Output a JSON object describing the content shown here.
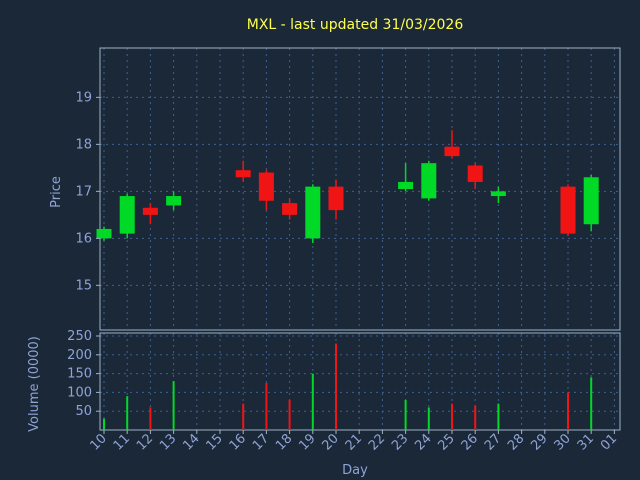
{
  "chart_data": {
    "type": "candlestick",
    "title": "MXL - last updated 31/03/2026",
    "xlabel": "Day",
    "ylabel_price": "Price",
    "ylabel_volume": "Volume (0000)",
    "colors": {
      "up": "#00d926",
      "down": "#f01414",
      "grid": "#3f5f93",
      "frame": "#9fb2c8",
      "text": "#8fa3d6",
      "title": "#ffff4d",
      "background": "#1b2838"
    },
    "x_labels": [
      "10",
      "11",
      "12",
      "13",
      "14",
      "15",
      "16",
      "17",
      "18",
      "19",
      "20",
      "21",
      "22",
      "23",
      "24",
      "25",
      "26",
      "27",
      "28",
      "29",
      "30",
      "31",
      "01"
    ],
    "price_ticks": [
      15,
      16,
      17,
      18,
      19
    ],
    "price_range": [
      14.05,
      20.05
    ],
    "volume_ticks": [
      50,
      100,
      150,
      200,
      250
    ],
    "volume_range": [
      0,
      258
    ],
    "grid": true,
    "candles": [
      {
        "day": "10",
        "i": 0,
        "open": 16.0,
        "high": 16.25,
        "low": 15.95,
        "close": 16.2,
        "volume": 30,
        "dir": "up"
      },
      {
        "day": "11",
        "i": 1,
        "open": 16.1,
        "high": 16.95,
        "low": 16.0,
        "close": 16.9,
        "volume": 90,
        "dir": "up"
      },
      {
        "day": "12",
        "i": 2,
        "open": 16.65,
        "high": 16.75,
        "low": 16.3,
        "close": 16.5,
        "volume": 60,
        "dir": "down"
      },
      {
        "day": "13",
        "i": 3,
        "open": 16.7,
        "high": 17.0,
        "low": 16.6,
        "close": 16.9,
        "volume": 130,
        "dir": "up"
      },
      {
        "day": "16",
        "i": 6,
        "open": 17.45,
        "high": 17.65,
        "low": 17.2,
        "close": 17.3,
        "volume": 70,
        "dir": "down"
      },
      {
        "day": "17",
        "i": 7,
        "open": 17.4,
        "high": 17.45,
        "low": 16.6,
        "close": 16.8,
        "volume": 125,
        "dir": "down"
      },
      {
        "day": "18",
        "i": 8,
        "open": 16.75,
        "high": 16.85,
        "low": 16.4,
        "close": 16.5,
        "volume": 80,
        "dir": "down"
      },
      {
        "day": "19",
        "i": 9,
        "open": 16.0,
        "high": 17.15,
        "low": 15.9,
        "close": 17.1,
        "volume": 150,
        "dir": "up"
      },
      {
        "day": "20",
        "i": 10,
        "open": 17.1,
        "high": 17.25,
        "low": 16.4,
        "close": 16.6,
        "volume": 230,
        "dir": "down"
      },
      {
        "day": "23",
        "i": 13,
        "open": 17.05,
        "high": 17.6,
        "low": 17.0,
        "close": 17.2,
        "volume": 80,
        "dir": "up"
      },
      {
        "day": "24",
        "i": 14,
        "open": 16.85,
        "high": 17.65,
        "low": 16.8,
        "close": 17.6,
        "volume": 60,
        "dir": "up"
      },
      {
        "day": "25",
        "i": 15,
        "open": 17.95,
        "high": 18.3,
        "low": 17.7,
        "close": 17.75,
        "volume": 70,
        "dir": "down"
      },
      {
        "day": "26",
        "i": 16,
        "open": 17.55,
        "high": 17.6,
        "low": 17.05,
        "close": 17.2,
        "volume": 65,
        "dir": "down"
      },
      {
        "day": "27",
        "i": 17,
        "open": 16.9,
        "high": 17.1,
        "low": 16.75,
        "close": 17.0,
        "volume": 70,
        "dir": "up"
      },
      {
        "day": "30",
        "i": 20,
        "open": 17.1,
        "high": 17.15,
        "low": 16.05,
        "close": 16.1,
        "volume": 100,
        "dir": "down"
      },
      {
        "day": "31",
        "i": 21,
        "open": 16.3,
        "high": 17.35,
        "low": 16.15,
        "close": 17.3,
        "volume": 140,
        "dir": "up"
      }
    ]
  }
}
